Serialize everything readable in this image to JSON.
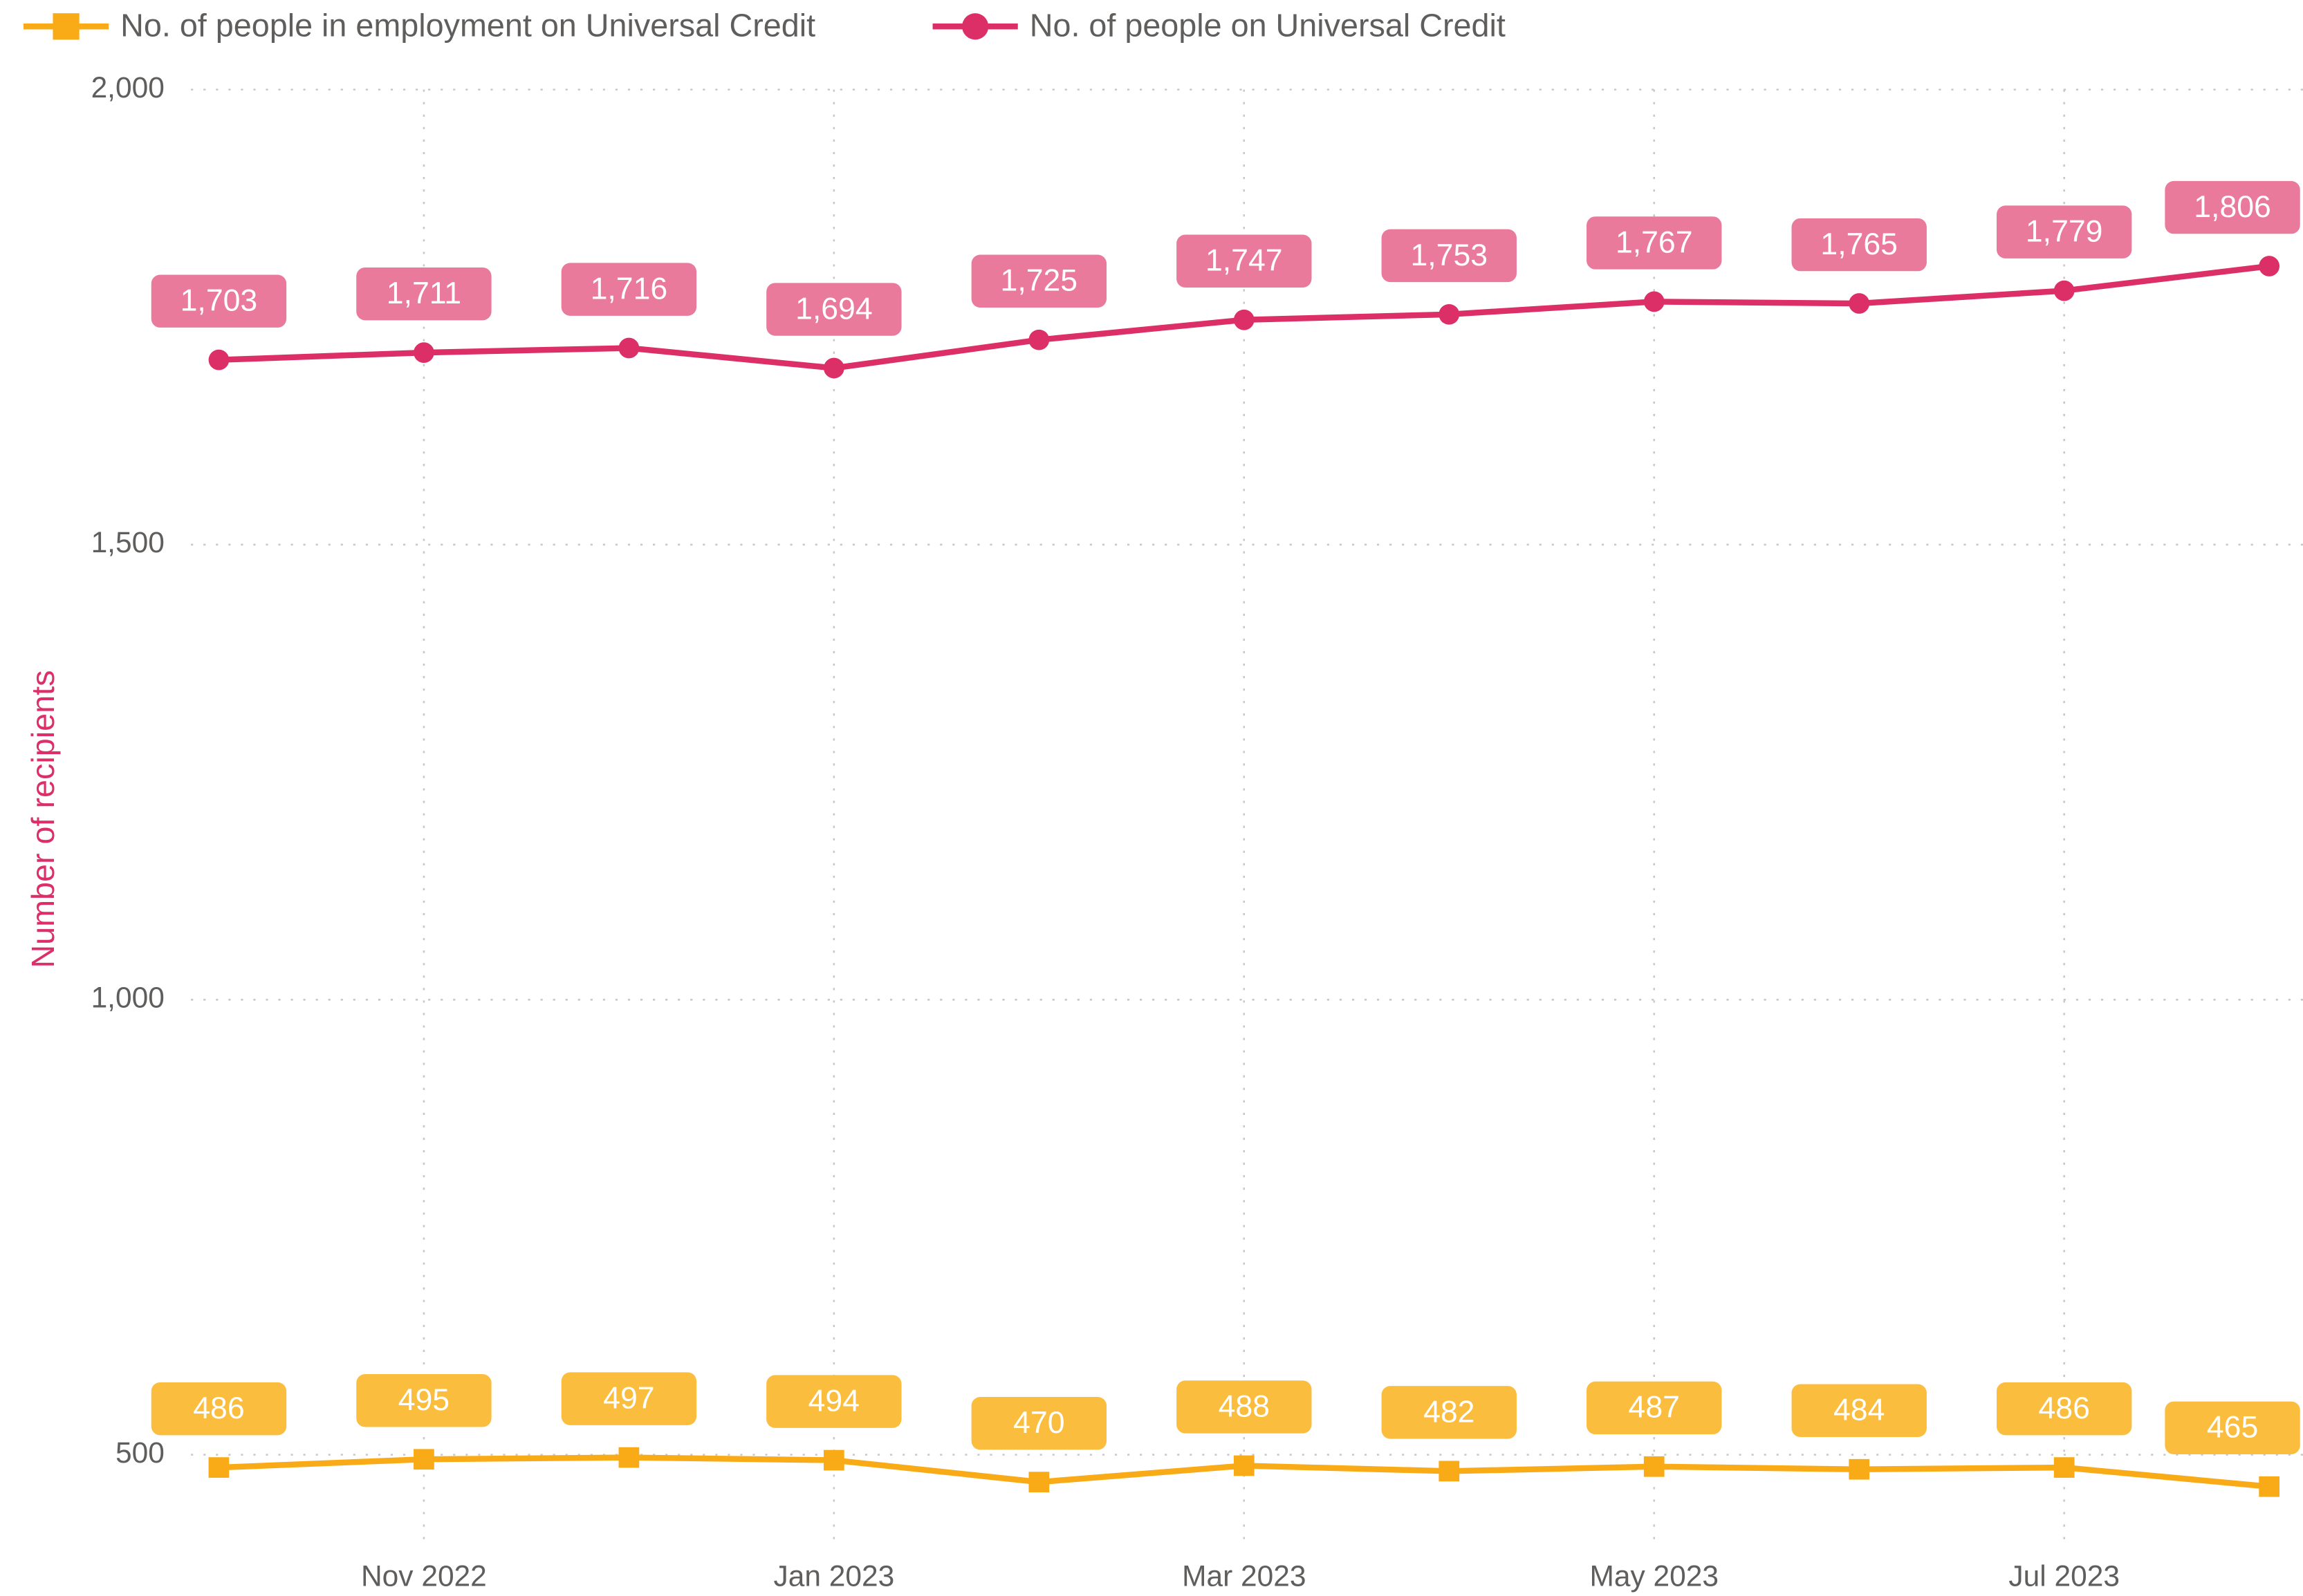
{
  "chart_data": {
    "type": "line",
    "y_label": "Number of recipients",
    "categories": [
      null,
      "Nov 2022",
      null,
      "Jan 2023",
      null,
      "Mar 2023",
      null,
      "May 2023",
      null,
      "Jul 2023",
      null
    ],
    "series": [
      {
        "name": "No. of people in employment on Universal Credit",
        "color": "#f9ab17",
        "label_color": "#fbbd3e",
        "marker": "square",
        "values": [
          486,
          495,
          497,
          494,
          470,
          488,
          482,
          487,
          484,
          486,
          465
        ]
      },
      {
        "name": "No. of people on Universal Credit",
        "color": "#dc2f68",
        "label_color": "#ea7a9c",
        "marker": "circle",
        "values": [
          1703,
          1711,
          1716,
          1694,
          1725,
          1747,
          1753,
          1767,
          1765,
          1779,
          1806
        ],
        "value_labels": [
          "1,703",
          "1,711",
          "1,716",
          "1,694",
          "1,725",
          "1,747",
          "1,753",
          "1,767",
          "1,765",
          "1,779",
          "1,806"
        ]
      }
    ],
    "ylim": [
      400,
      2000
    ],
    "yticks": [
      500,
      {
        "value": 1000,
        "label": "1,000"
      },
      {
        "value": 1500,
        "label": "1,500"
      },
      {
        "value": 2000,
        "label": "2,000"
      }
    ],
    "grid": true,
    "legend": "top-left"
  }
}
